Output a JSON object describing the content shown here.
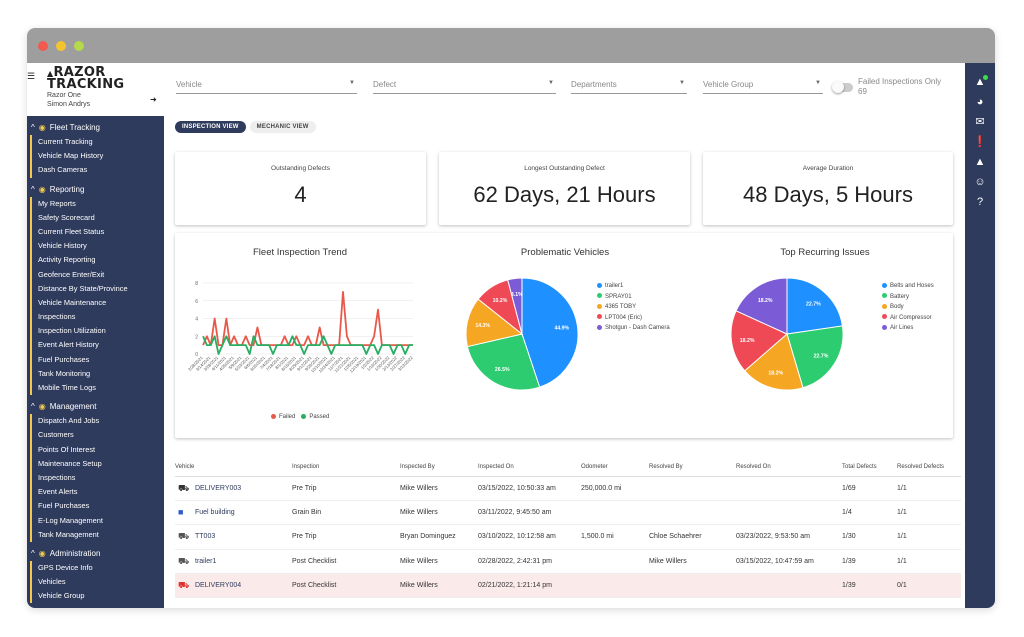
{
  "window": {
    "dots": [
      "#f25a50",
      "#f4c430",
      "#b5d94a"
    ]
  },
  "brand": {
    "logo_line1": "RAZOR",
    "logo_line2": "TRACKING",
    "org": "Razor One",
    "user": "Simon Andrys"
  },
  "sidebar": {
    "sections": [
      {
        "title": "Fleet Tracking",
        "icon": "map-icon",
        "items": [
          "Current Tracking",
          "Vehicle Map History",
          "Dash Cameras"
        ]
      },
      {
        "title": "Reporting",
        "icon": "pie-chart-icon",
        "items": [
          "My Reports",
          "Safety Scorecard",
          "Current Fleet Status",
          "Vehicle History",
          "Activity Reporting",
          "Geofence Enter/Exit",
          "Distance By State/Province",
          "Vehicle Maintenance",
          "Inspections",
          "Inspection Utilization",
          "Event Alert History",
          "Fuel Purchases",
          "Tank Monitoring",
          "Mobile Time Logs"
        ]
      },
      {
        "title": "Management",
        "icon": "gear-icon",
        "items": [
          "Dispatch And Jobs",
          "Customers",
          "Points Of Interest",
          "Maintenance Setup",
          "Inspections",
          "Event Alerts",
          "Fuel Purchases",
          "E-Log Management",
          "Tank Management"
        ]
      },
      {
        "title": "Administration",
        "icon": "users-icon",
        "items": [
          "GPS Device Info",
          "Vehicles",
          "Vehicle Group"
        ]
      }
    ]
  },
  "filters": {
    "vehicle": "Vehicle",
    "defect": "Defect",
    "departments": "Departments",
    "vehicle_group": "Vehicle Group",
    "failed_only": "Failed Inspections Only",
    "failed_count": "69"
  },
  "views": {
    "inspection": "INSPECTION VIEW",
    "mechanic": "MECHANIC VIEW"
  },
  "stats": {
    "outstanding_label": "Outstanding Defects",
    "outstanding_value": "4",
    "longest_label": "Longest Outstanding Defect",
    "longest_value": "62 Days, 21 Hours",
    "average_label": "Average Duration",
    "average_value": "48 Days, 5 Hours"
  },
  "chart_data": [
    {
      "type": "line",
      "title": "Fleet Inspection Trend",
      "x": [
        "2/28/2021",
        "3/7/2021",
        "3/14/2021",
        "3/21/2021",
        "3/28/2021",
        "4/4/2021",
        "4/11/2021",
        "4/18/2021",
        "4/25/2021",
        "5/2/2021",
        "5/9/2021",
        "5/16/2021",
        "5/23/2021",
        "5/30/2021",
        "6/6/2021",
        "6/13/2021",
        "6/20/2021",
        "6/27/2021",
        "7/4/2021",
        "7/11/2021",
        "7/18/2021",
        "7/25/2021",
        "8/1/2021",
        "8/8/2021",
        "8/15/2021",
        "8/22/2021",
        "8/29/2021",
        "9/5/2021",
        "9/12/2021",
        "9/19/2021",
        "9/26/2021",
        "10/3/2021",
        "10/10/2021",
        "10/17/2021",
        "10/24/2021",
        "10/31/2021",
        "11/7/2021",
        "11/14/2021",
        "11/21/2021",
        "11/28/2021",
        "12/5/2021",
        "12/12/2021",
        "12/19/2021",
        "12/26/2021",
        "1/2/2022",
        "1/9/2022",
        "1/16/2022",
        "1/23/2022",
        "1/30/2022",
        "2/6/2022",
        "2/13/2022",
        "2/20/2022",
        "2/27/2022",
        "3/6/2022",
        "3/13/2022"
      ],
      "xtick_labels": [
        "2/28/2021",
        "3/14/2021",
        "3/28/2021",
        "4/11/2021",
        "4/25/2021",
        "5/9/2021",
        "5/23/2021",
        "6/6/2021",
        "6/20/2021",
        "7/4/2021",
        "7/18/2021",
        "8/1/2021",
        "8/15/2021",
        "8/29/2021",
        "9/12/2021",
        "9/26/2021",
        "10/10/2021",
        "10/24/2021",
        "11/7/2021",
        "11/21/2021",
        "12/5/2021",
        "12/19/2021",
        "1/2/2022",
        "1/16/2022",
        "1/30/2022",
        "2/13/2022",
        "2/27/2022",
        "3/13/2022"
      ],
      "ylim": [
        0,
        8
      ],
      "yticks": [
        0,
        2,
        4,
        6,
        8
      ],
      "grid": true,
      "legend": "bottom",
      "series": [
        {
          "name": "Failed",
          "color": "#e9594a",
          "values": [
            1,
            2,
            1,
            4,
            1,
            1,
            4,
            1,
            2,
            1,
            1,
            2,
            1,
            1,
            3,
            1,
            1,
            1,
            1,
            1,
            1,
            2,
            1,
            1,
            2,
            1,
            1,
            2,
            1,
            1,
            3,
            1,
            1,
            1,
            1,
            1,
            7,
            2,
            1,
            1,
            1,
            1,
            1,
            1,
            2,
            5,
            1,
            1,
            1,
            1,
            1,
            1,
            1,
            1,
            1
          ]
        },
        {
          "name": "Passed",
          "color": "#27ae60",
          "values": [
            2,
            1,
            1,
            2,
            0,
            1,
            2,
            1,
            1,
            1,
            1,
            1,
            0,
            2,
            1,
            1,
            1,
            1,
            0,
            1,
            1,
            1,
            1,
            2,
            1,
            1,
            0,
            1,
            1,
            1,
            1,
            2,
            1,
            0,
            1,
            1,
            1,
            1,
            1,
            1,
            1,
            1,
            0,
            1,
            1,
            0,
            1,
            1,
            1,
            0,
            1,
            1,
            0,
            1,
            1
          ]
        }
      ]
    },
    {
      "type": "pie",
      "title": "Problematic Vehicles",
      "categories": [
        "trailer1",
        "SPRAY01",
        "4365 TOBY",
        "LPT004 (Eric)",
        "Shotgun - Dash Camera"
      ],
      "values": [
        44.9,
        26.5,
        14.3,
        10.2,
        4.1
      ],
      "colors": [
        "#1e90ff",
        "#2ecc71",
        "#f5a623",
        "#ef4956",
        "#7c5cd6"
      ],
      "labels": [
        "44.9%",
        "26.5%",
        "14.3%",
        "10.2%",
        "4.1%"
      ],
      "legend": "right"
    },
    {
      "type": "pie",
      "title": "Top Recurring Issues",
      "categories": [
        "Belts and Hoses",
        "Battery",
        "Body",
        "Air Compressor",
        "Air Lines"
      ],
      "values": [
        22.7,
        22.7,
        18.2,
        18.2,
        18.2
      ],
      "colors": [
        "#1e90ff",
        "#2ecc71",
        "#f5a623",
        "#ef4956",
        "#7c5cd6"
      ],
      "labels": [
        "22.7%",
        "22.7%",
        "18.2%",
        "18.2%",
        "18.2%"
      ],
      "legend": "right"
    }
  ],
  "table": {
    "headers": [
      "Vehicle",
      "Inspection",
      "Inspected By",
      "Inspected On",
      "Odometer",
      "Resolved By",
      "Resolved On",
      "Total Defects",
      "Resolved Defects"
    ],
    "rows": [
      {
        "icon": "truck-icon",
        "icon_color": "#333",
        "vehicle": "DELIVERY003",
        "inspection": "Pre Trip",
        "by": "Mike Willers",
        "on": "03/15/2022, 10:50:33 am",
        "odometer": "250,000.0 mi",
        "resolved_by": "",
        "resolved_on": "",
        "total": "1/69",
        "resolved": "1/1",
        "highlight": false
      },
      {
        "icon": "square-icon",
        "icon_color": "#2f5bd0",
        "vehicle": "Fuel building",
        "inspection": "Grain Bin",
        "by": "Mike Willers",
        "on": "03/11/2022, 9:45:50 am",
        "odometer": "",
        "resolved_by": "",
        "resolved_on": "",
        "total": "1/4",
        "resolved": "1/1",
        "highlight": false
      },
      {
        "icon": "car-icon",
        "icon_color": "#555",
        "vehicle": "TT003",
        "inspection": "Pre Trip",
        "by": "Bryan Dominguez",
        "on": "03/10/2022, 10:12:58 am",
        "odometer": "1,500.0 mi",
        "resolved_by": "Chloe Schaehrer",
        "resolved_on": "03/23/2022, 9:53:50 am",
        "total": "1/30",
        "resolved": "1/1",
        "highlight": false
      },
      {
        "icon": "trailer-icon",
        "icon_color": "#555",
        "vehicle": "trailer1",
        "inspection": "Post Checklist",
        "by": "Mike Willers",
        "on": "02/28/2022, 2:42:31 pm",
        "odometer": "",
        "resolved_by": "Mike Willers",
        "resolved_on": "03/15/2022, 10:47:59 am",
        "total": "1/39",
        "resolved": "1/1",
        "highlight": false
      },
      {
        "icon": "truck-icon",
        "icon_color": "#d33",
        "vehicle": "DELIVERY004",
        "inspection": "Post Checklist",
        "by": "Mike Willers",
        "on": "02/21/2022, 1:21:14 pm",
        "odometer": "",
        "resolved_by": "",
        "resolved_on": "",
        "total": "1/39",
        "resolved": "0/1",
        "highlight": true
      }
    ]
  }
}
